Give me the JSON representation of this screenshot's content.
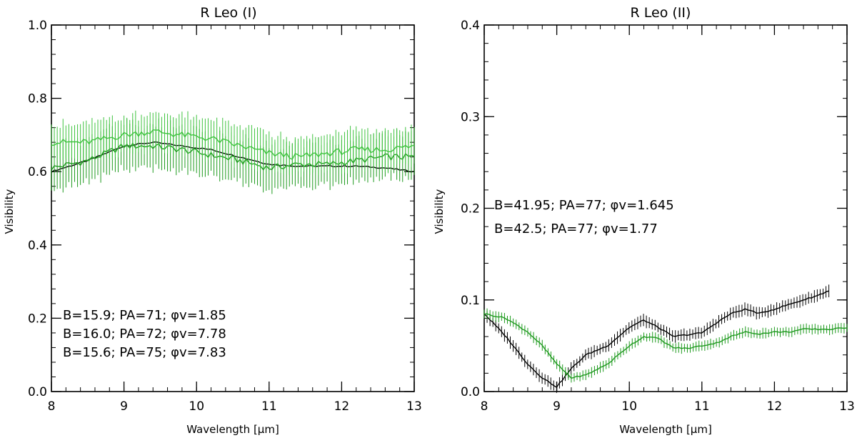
{
  "chart_data": [
    {
      "type": "line",
      "title": "R Leo (I)",
      "xlabel": "Wavelength [μm]",
      "ylabel": "Visibility",
      "xlim": [
        8,
        13
      ],
      "ylim": [
        0.0,
        1.0
      ],
      "x_ticks": [
        "8",
        "9",
        "10",
        "11",
        "12",
        "13"
      ],
      "y_ticks": [
        "0.0",
        "0.2",
        "0.4",
        "0.6",
        "0.8",
        "1.0"
      ],
      "grid": false,
      "annotations": [
        {
          "text": "B=15.9; PA=71; φv=1.85",
          "color": "#000000"
        },
        {
          "text": "B=16.0; PA=72; φv=7.78",
          "color": "#1e9a1e"
        },
        {
          "text": "B=15.6; PA=75; φv=7.83",
          "color": "#3ec33e"
        }
      ],
      "series": [
        {
          "color": "#000000",
          "x": [
            8.0,
            8.5,
            9.0,
            9.4,
            9.8,
            10.2,
            10.6,
            11.0,
            11.4,
            11.8,
            12.2,
            12.6,
            13.0
          ],
          "y": [
            0.6,
            0.63,
            0.67,
            0.68,
            0.67,
            0.66,
            0.64,
            0.62,
            0.615,
            0.615,
            0.615,
            0.61,
            0.6
          ],
          "error": 0
        },
        {
          "color": "#1e9a1e",
          "x": [
            8.0,
            8.5,
            9.0,
            9.4,
            9.8,
            10.2,
            10.6,
            11.0,
            11.4,
            11.8,
            12.2,
            12.6,
            13.0
          ],
          "y": [
            0.61,
            0.63,
            0.67,
            0.67,
            0.66,
            0.645,
            0.63,
            0.61,
            0.62,
            0.62,
            0.63,
            0.64,
            0.64
          ],
          "error": 0.07
        },
        {
          "color": "#3ec33e",
          "x": [
            8.0,
            8.5,
            9.0,
            9.4,
            9.8,
            10.2,
            10.6,
            11.0,
            11.4,
            11.8,
            12.2,
            12.6,
            13.0
          ],
          "y": [
            0.68,
            0.68,
            0.7,
            0.71,
            0.7,
            0.69,
            0.67,
            0.65,
            0.64,
            0.65,
            0.66,
            0.66,
            0.67
          ],
          "error": 0.06
        }
      ]
    },
    {
      "type": "line",
      "title": "R Leo (II)",
      "xlabel": "Wavelength [μm]",
      "ylabel": "Visibility",
      "xlim": [
        8,
        13
      ],
      "ylim": [
        0.0,
        0.4
      ],
      "x_ticks": [
        "8",
        "9",
        "10",
        "11",
        "12",
        "13"
      ],
      "y_ticks": [
        "0.0",
        "0.1",
        "0.2",
        "0.3",
        "0.4"
      ],
      "grid": false,
      "annotations": [
        {
          "text": "B=41.95; PA=77; φv=1.645",
          "color": "#000000"
        },
        {
          "text": "B=42.5; PA=77; φv=1.77",
          "color": "#1e9a1e"
        }
      ],
      "series": [
        {
          "color": "#000000",
          "x": [
            8.0,
            8.3,
            8.6,
            8.8,
            9.0,
            9.2,
            9.4,
            9.7,
            10.0,
            10.2,
            10.4,
            10.6,
            10.8,
            11.0,
            11.2,
            11.4,
            11.6,
            11.8,
            12.0,
            12.2,
            12.4,
            12.6,
            12.75
          ],
          "y": [
            0.085,
            0.06,
            0.03,
            0.015,
            0.005,
            0.025,
            0.04,
            0.05,
            0.07,
            0.078,
            0.07,
            0.06,
            0.062,
            0.064,
            0.075,
            0.085,
            0.09,
            0.085,
            0.09,
            0.095,
            0.1,
            0.105,
            0.11
          ],
          "error": 0.007
        },
        {
          "color": "#1e9a1e",
          "x": [
            8.0,
            8.3,
            8.6,
            8.8,
            9.0,
            9.2,
            9.4,
            9.7,
            10.0,
            10.2,
            10.4,
            10.6,
            10.8,
            11.0,
            11.2,
            11.4,
            11.6,
            11.8,
            12.0,
            12.2,
            12.4,
            12.6,
            12.8,
            13.0
          ],
          "y": [
            0.085,
            0.08,
            0.065,
            0.05,
            0.03,
            0.015,
            0.018,
            0.03,
            0.05,
            0.06,
            0.058,
            0.048,
            0.047,
            0.05,
            0.053,
            0.06,
            0.065,
            0.063,
            0.065,
            0.065,
            0.068,
            0.068,
            0.068,
            0.07
          ],
          "error": 0.006
        }
      ]
    }
  ]
}
